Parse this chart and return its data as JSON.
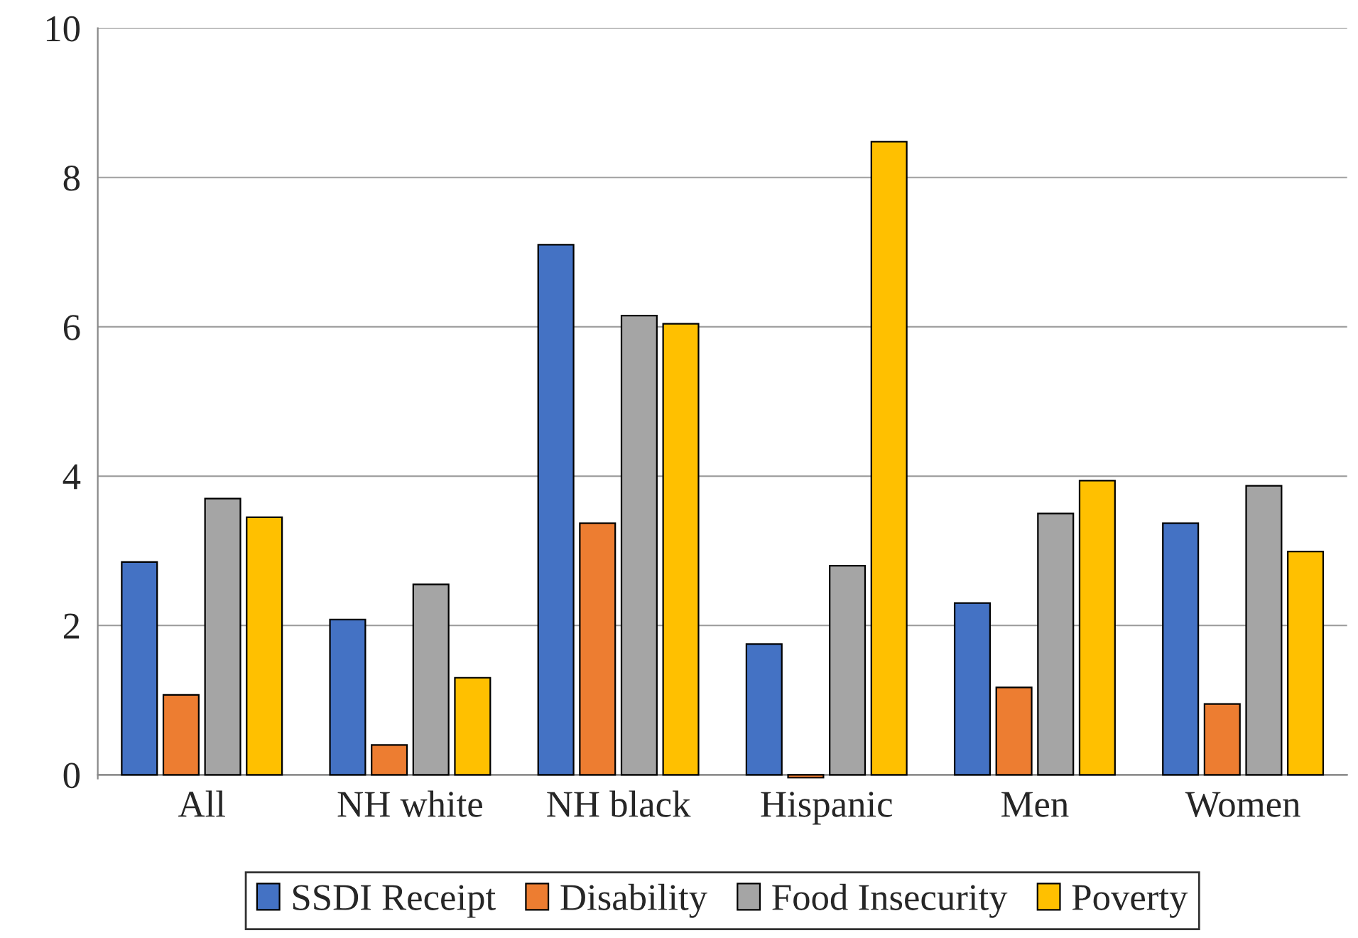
{
  "chart_data": {
    "type": "bar",
    "categories": [
      "All",
      "NH white",
      "NH black",
      "Hispanic",
      "Men",
      "Women"
    ],
    "series": [
      {
        "name": "SSDI Receipt",
        "color": "#4472c4",
        "values": [
          2.85,
          2.08,
          7.1,
          1.75,
          2.3,
          3.37
        ]
      },
      {
        "name": "Disability",
        "color": "#ed7d31",
        "values": [
          1.07,
          0.4,
          3.37,
          -0.04,
          1.17,
          0.95
        ]
      },
      {
        "name": "Food Insecurity",
        "color": "#a5a5a5",
        "values": [
          3.7,
          2.55,
          6.15,
          2.8,
          3.5,
          3.87
        ]
      },
      {
        "name": "Poverty",
        "color": "#ffc000",
        "values": [
          3.45,
          1.3,
          6.04,
          8.48,
          3.94,
          2.99
        ]
      }
    ],
    "ylim": [
      -0.05,
      10
    ],
    "yticks": [
      0,
      2,
      4,
      6,
      8,
      10
    ],
    "grid": "y",
    "legend": "bottom"
  }
}
